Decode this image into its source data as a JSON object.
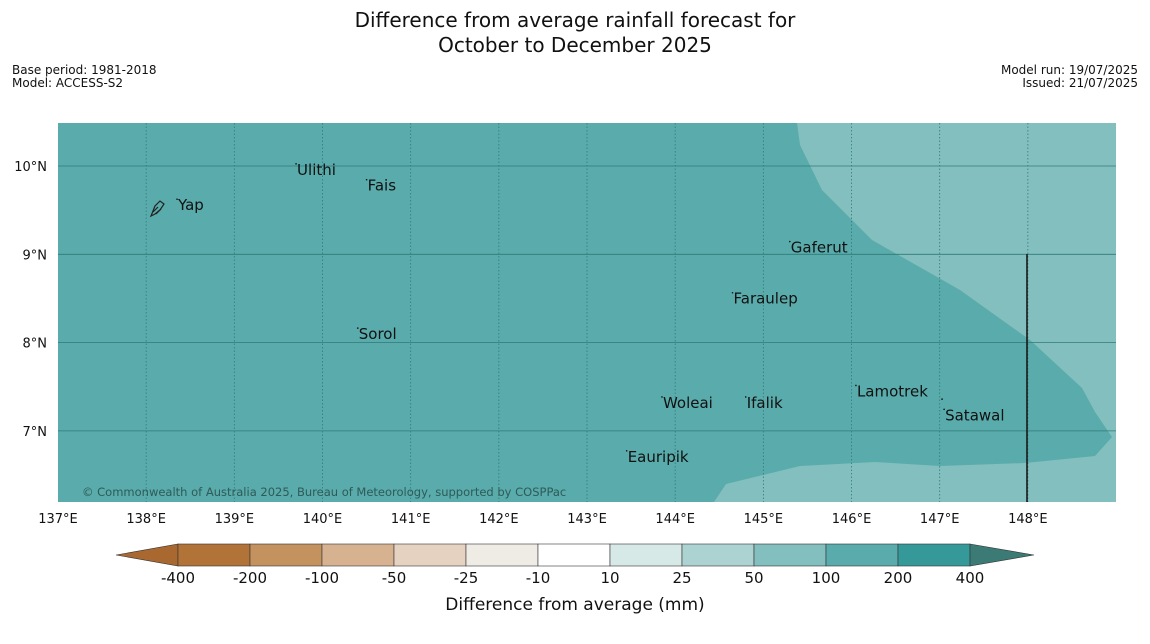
{
  "title": {
    "line1": "Difference from average rainfall forecast for",
    "line2": "October to December 2025"
  },
  "meta": {
    "base_period": "Base period: 1981-2018",
    "model": "Model: ACCESS-S2",
    "model_run": "Model run: 19/07/2025",
    "issued": "Issued: 21/07/2025"
  },
  "map": {
    "extent": {
      "lon_min": 137,
      "lon_max": 149,
      "lat_min": 6.2,
      "lat_max": 10.5
    },
    "lon_ticks": [
      "137°E",
      "138°E",
      "139°E",
      "140°E",
      "141°E",
      "142°E",
      "143°E",
      "144°E",
      "145°E",
      "146°E",
      "147°E",
      "148°E"
    ],
    "lat_ticks": [
      "10°N",
      "9°N",
      "8°N",
      "7°N"
    ],
    "places": [
      {
        "name": "Yap",
        "lon": 138.35,
        "lat": 9.5
      },
      {
        "name": "Ulithi",
        "lon": 139.7,
        "lat": 9.9
      },
      {
        "name": "Fais",
        "lon": 140.5,
        "lat": 9.72
      },
      {
        "name": "Gaferut",
        "lon": 145.3,
        "lat": 9.02
      },
      {
        "name": "Faraulep",
        "lon": 144.65,
        "lat": 8.44
      },
      {
        "name": "Sorol",
        "lon": 140.4,
        "lat": 8.04
      },
      {
        "name": "Woleai",
        "lon": 143.85,
        "lat": 7.26
      },
      {
        "name": "Ifalik",
        "lon": 144.8,
        "lat": 7.26
      },
      {
        "name": "Lamotrek",
        "lon": 146.05,
        "lat": 7.39
      },
      {
        "name": "Satawal",
        "lon": 147.05,
        "lat": 7.12
      },
      {
        "name": "Eauripik",
        "lon": 143.45,
        "lat": 6.65
      }
    ],
    "colors": {
      "base": "#5aabab",
      "wetter": "#83bfbe",
      "grid": "#2f7b78",
      "eez": "#1a1a1a"
    },
    "copyright": "© Commonwealth of Australia 2025, Bureau of Meteorology, supported by COSPPac"
  },
  "legend": {
    "label": "Difference from average (mm)",
    "ticks": [
      "-400",
      "-200",
      "-100",
      "-50",
      "-25",
      "-10",
      "10",
      "25",
      "50",
      "100",
      "200",
      "400"
    ],
    "colors": [
      "#a8682f",
      "#b27339",
      "#c3925f",
      "#d6b291",
      "#e5d2c0",
      "#efebe5",
      "#ffffff",
      "#d6e9e7",
      "#acd3d2",
      "#83bfbe",
      "#5aabab",
      "#35999a",
      "#3b7a75"
    ]
  }
}
